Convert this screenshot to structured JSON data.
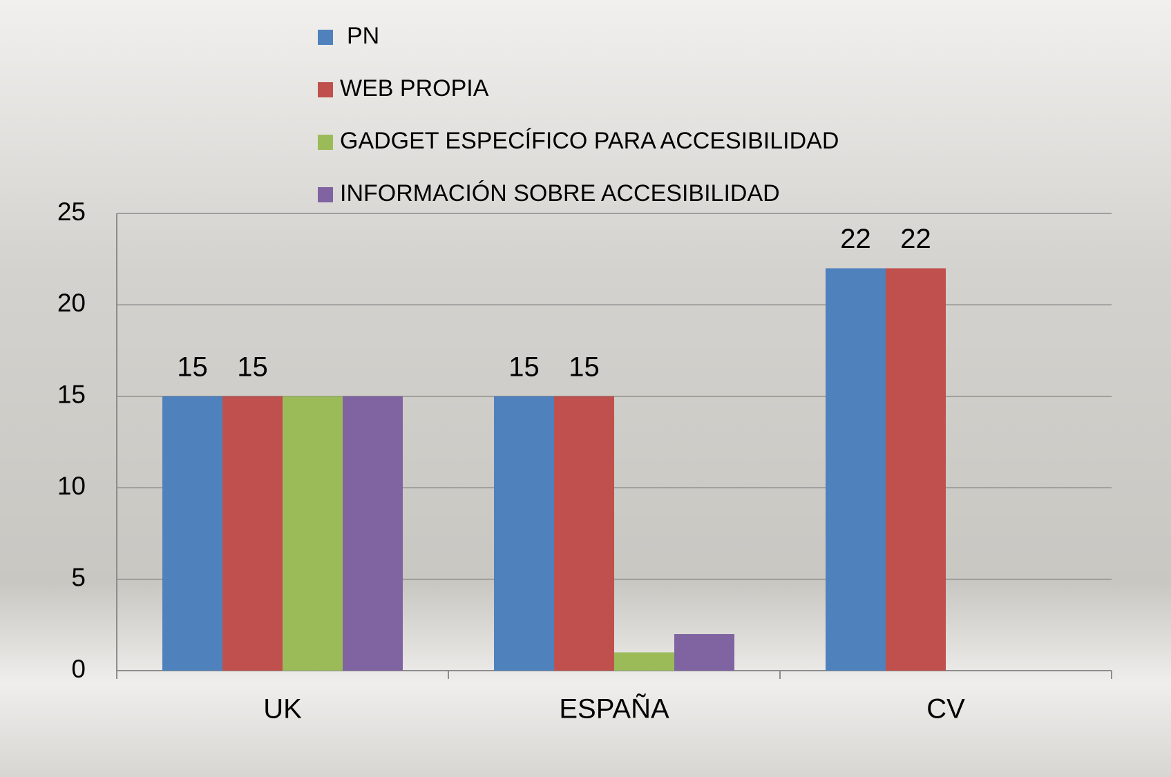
{
  "chart_data": {
    "type": "bar",
    "categories": [
      "UK",
      "ESPAÑA",
      "CV"
    ],
    "series": [
      {
        "name": "PN",
        "color": "#4f81bd",
        "values": [
          15,
          15,
          22
        ],
        "labels": true
      },
      {
        "name": "WEB PROPIA",
        "color": "#c0504d",
        "values": [
          15,
          15,
          22
        ],
        "labels": true
      },
      {
        "name": "GADGET ESPECÍFICO PARA ACCESIBILIDAD",
        "color": "#9bbb59",
        "values": [
          15,
          1,
          0
        ],
        "labels": false
      },
      {
        "name": "INFORMACIÓN SOBRE ACCESIBILIDAD",
        "color": "#8064a2",
        "values": [
          15,
          2,
          0
        ],
        "labels": false
      }
    ],
    "ylim": [
      0,
      25
    ],
    "yticks": [
      0,
      5,
      10,
      15,
      20,
      25
    ],
    "grid": true
  }
}
